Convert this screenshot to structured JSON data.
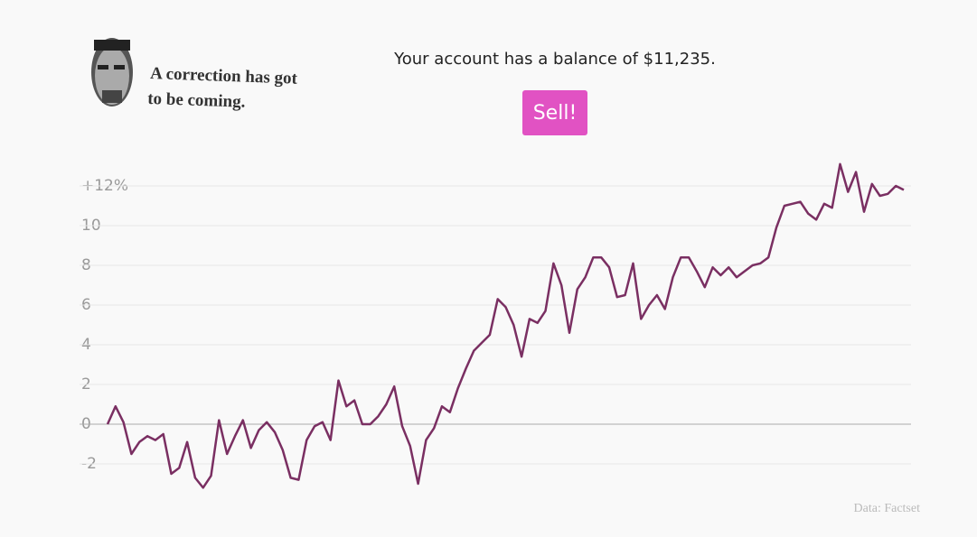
{
  "header": {
    "speech": [
      "A correction has got",
      "to be coming."
    ],
    "balance": "Your account has a balance of $11,235.",
    "button": "Sell!"
  },
  "chart_data": {
    "type": "line",
    "color": "#7a2f62",
    "source": "Data: Factset",
    "values": [
      0,
      0.9,
      0.1,
      -1.5,
      -0.9,
      -0.6,
      -0.8,
      -0.5,
      -2.5,
      -2.2,
      -0.9,
      -2.7,
      -3.2,
      -2.6,
      0.2,
      -1.5,
      -0.6,
      0.2,
      -1.2,
      -0.3,
      0.1,
      -0.4,
      -1.3,
      -2.7,
      -2.8,
      -0.8,
      -0.1,
      0.1,
      -0.8,
      2.2,
      0.9,
      1.2,
      0,
      0,
      0.4,
      1.0,
      1.9,
      -0.1,
      -1.1,
      -3.0,
      -0.8,
      -0.2,
      0.9,
      0.6,
      1.8,
      2.8,
      3.7,
      4.1,
      4.5,
      6.3,
      5.9,
      5.0,
      3.4,
      5.3,
      5.1,
      5.7,
      8.1,
      7.0,
      4.6,
      6.8,
      7.4,
      8.4,
      8.4,
      7.9,
      6.4,
      6.5,
      8.1,
      5.3,
      6.0,
      6.5,
      5.8,
      7.4,
      8.4,
      8.4,
      7.7,
      6.9,
      7.9,
      7.5,
      7.9,
      7.4,
      7.7,
      8.0,
      8.1,
      8.4,
      9.9,
      11.0,
      11.1,
      11.2,
      10.6,
      10.3,
      11.1,
      10.9,
      13.1,
      11.7,
      12.7,
      10.7,
      12.1,
      11.5,
      11.6,
      12.0,
      11.8
    ],
    "ylim": [
      -3.5,
      13.5
    ],
    "yticks": [
      -2,
      0,
      2,
      4,
      6,
      8,
      10,
      {
        "value": 12,
        "label": "+12%"
      }
    ],
    "grid": true
  }
}
